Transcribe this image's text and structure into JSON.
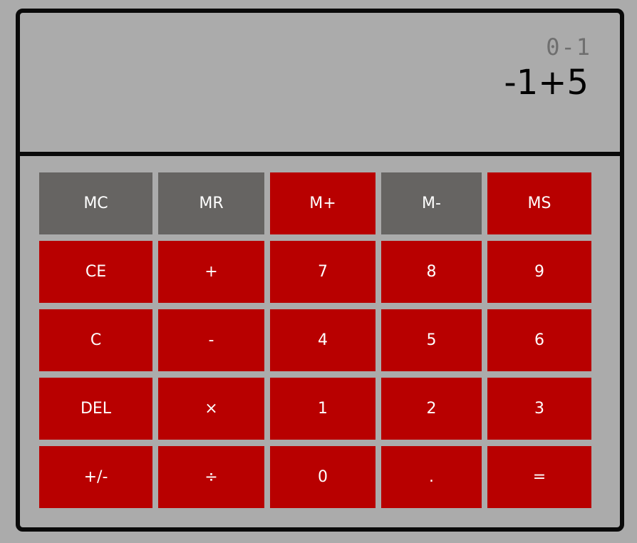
{
  "display": {
    "history": "0-1",
    "value": "-1+5"
  },
  "colors": {
    "background": "#ababab",
    "button_red": "#b80000",
    "button_gray": "#666462",
    "border": "#0a0a0a",
    "history_text": "#6f6f6f"
  },
  "keypad": {
    "rows": [
      [
        "MC",
        "MR",
        "M+",
        "M-",
        "MS"
      ],
      [
        "CE",
        "+",
        "7",
        "8",
        "9"
      ],
      [
        "C",
        "-",
        "4",
        "5",
        "6"
      ],
      [
        "DEL",
        "×",
        "1",
        "2",
        "3"
      ],
      [
        "+/-",
        "÷",
        "0",
        ".",
        "="
      ]
    ]
  }
}
